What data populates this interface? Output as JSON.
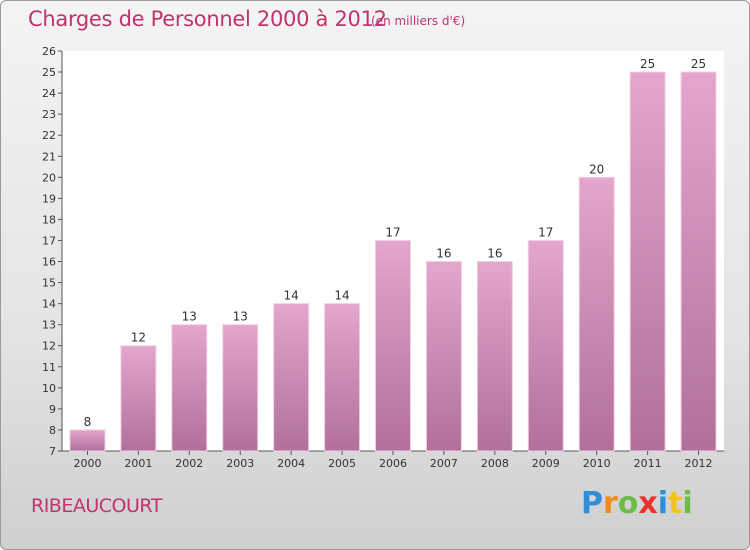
{
  "title": "Charges de Personnel 2000 à 2012",
  "unit_note": "(en milliers d'€)",
  "place_name": "RIBEAUCOURT",
  "brand": {
    "text": "Proxiti",
    "letter_colors": [
      "#2f8fd6",
      "#f28a1e",
      "#6cbd45",
      "#e8322c",
      "#2f8fd6",
      "#f5c31e",
      "#6cbd45"
    ]
  },
  "colors": {
    "bar_top": "#e4a6cd",
    "bar_bottom": "#b0709a",
    "text": "#c0336f",
    "axis_text": "#333333"
  },
  "chart_data": {
    "type": "bar",
    "categories": [
      "2000",
      "2001",
      "2002",
      "2003",
      "2004",
      "2005",
      "2006",
      "2007",
      "2008",
      "2009",
      "2010",
      "2011",
      "2012"
    ],
    "values": [
      8,
      12,
      13,
      13,
      14,
      14,
      17,
      16,
      16,
      17,
      20,
      25,
      25
    ],
    "ylim": [
      7,
      26
    ],
    "ytick_step": 1,
    "grid": false
  }
}
